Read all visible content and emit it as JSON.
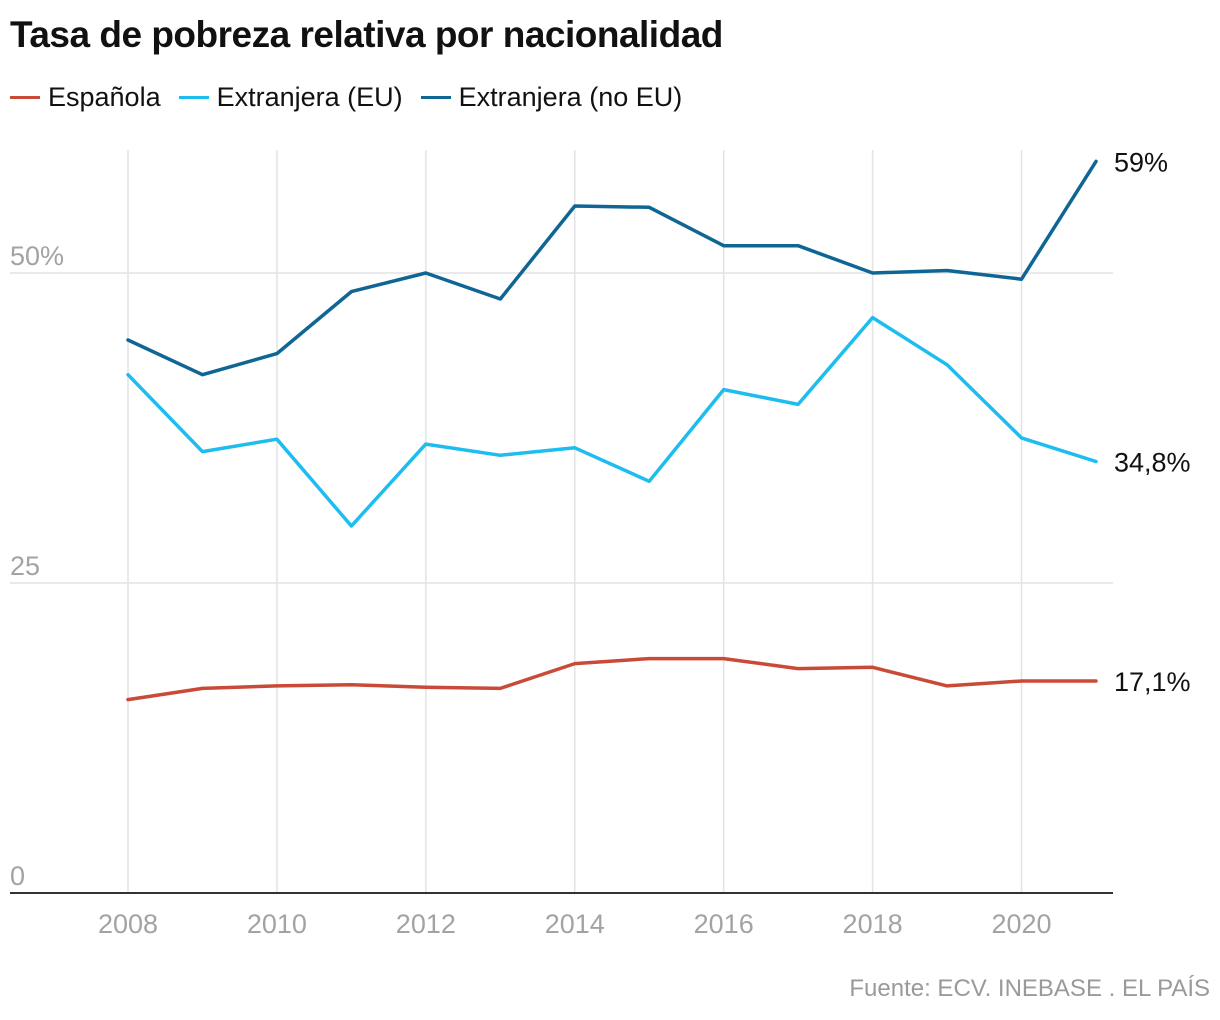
{
  "title": "Tasa de pobreza relativa por nacionalidad",
  "source": "Fuente: ECV. INEBASE . EL PAÍS",
  "colors": {
    "espanola": "#c94a36",
    "ext_eu": "#1dbdf0",
    "ext_no_eu": "#0f6695",
    "grid": "#e3e3e3",
    "axis": "#333333"
  },
  "chart_data": {
    "type": "line",
    "title": "Tasa de pobreza relativa por nacionalidad",
    "x": [
      2008,
      2009,
      2010,
      2011,
      2012,
      2013,
      2014,
      2015,
      2016,
      2017,
      2018,
      2019,
      2020,
      2021
    ],
    "x_tick_labels": [
      "2008",
      "2010",
      "2012",
      "2014",
      "2016",
      "2018",
      "2020"
    ],
    "y_tick_labels": [
      "0",
      "25",
      "50%"
    ],
    "y_ticks": [
      0,
      25,
      50
    ],
    "ylim": [
      0,
      60
    ],
    "grid": true,
    "legend_position": "top-left",
    "series": [
      {
        "name": "Española",
        "color": "#c94a36",
        "values": [
          15.6,
          16.5,
          16.7,
          16.8,
          16.6,
          16.5,
          18.5,
          18.9,
          18.9,
          18.1,
          18.2,
          16.7,
          17.1,
          17.1
        ],
        "end_label": "17,1%"
      },
      {
        "name": "Extranjera (EU)",
        "color": "#1dbdf0",
        "values": [
          41.8,
          35.6,
          36.6,
          29.6,
          36.2,
          35.3,
          35.9,
          33.2,
          40.6,
          39.4,
          46.4,
          42.6,
          36.7,
          34.8
        ],
        "end_label": "34,8%"
      },
      {
        "name": "Extranjera (no EU)",
        "color": "#0f6695",
        "values": [
          44.6,
          41.8,
          43.5,
          48.5,
          50.0,
          47.9,
          55.4,
          55.3,
          52.2,
          52.2,
          50.0,
          50.2,
          49.5,
          59.0
        ],
        "end_label": "59%"
      }
    ]
  }
}
